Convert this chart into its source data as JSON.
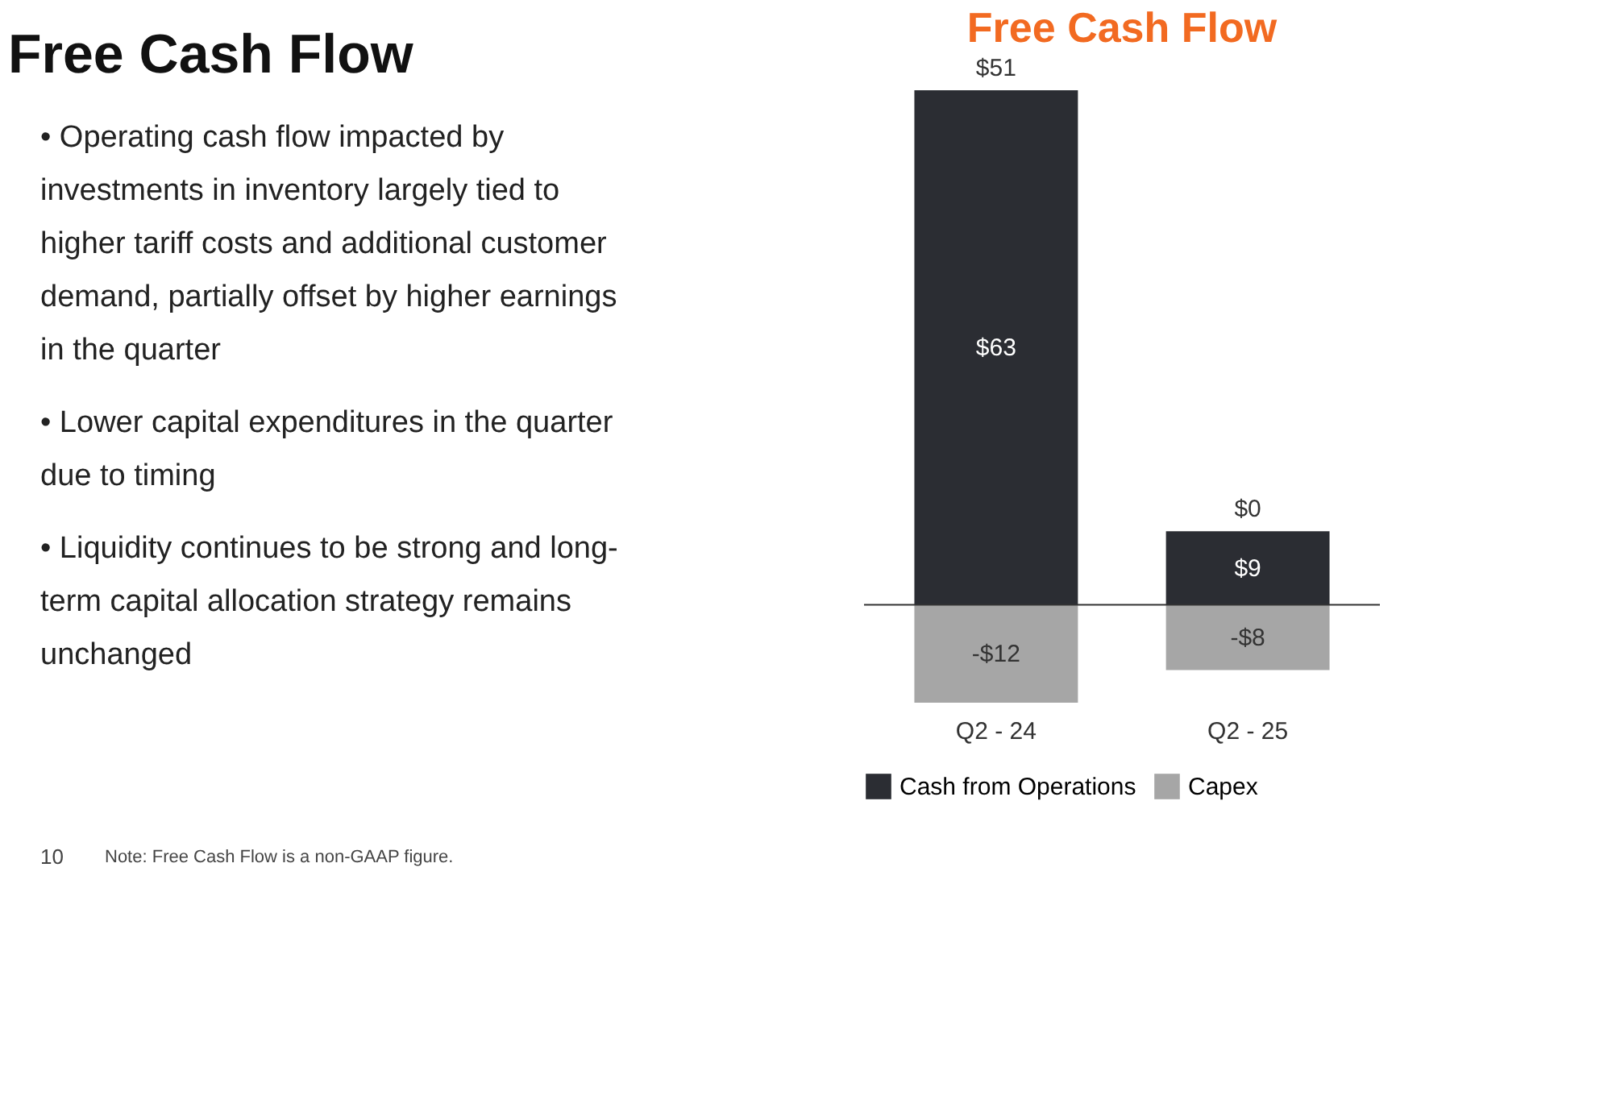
{
  "chart_data": [
    {
      "type": "other",
      "title": "Free Cash Flow",
      "annotations": [
        "• Operating cash flow impacted by investments in inventory largely tied to higher tariff costs and additional customer demand, partially offset by higher earnings in the quarter",
        "• Lower capital expenditures in the quarter due to timing",
        "• Liquidity continues to be strong and long-term capital allocation strategy remains unchanged",
        "10",
        "Note: Free Cash Flow is a non-GAAP figure."
      ]
    },
    {
      "type": "bar",
      "title": "Free Cash Flow",
      "stacked": true,
      "categories": [
        "Q2 - 24",
        "Q2 - 25"
      ],
      "series": [
        {
          "name": "Cash from Operations",
          "color": "#2b2d33",
          "values": [
            63,
            9
          ],
          "value_labels": [
            "$63",
            "$9"
          ]
        },
        {
          "name": "Capex",
          "color": "#a6a6a6",
          "values": [
            -12,
            -8
          ],
          "value_labels": [
            "-$12",
            "-$8"
          ]
        }
      ],
      "totals": [
        "$51",
        "$0"
      ],
      "legend": "bottom",
      "grid": false
    }
  ]
}
